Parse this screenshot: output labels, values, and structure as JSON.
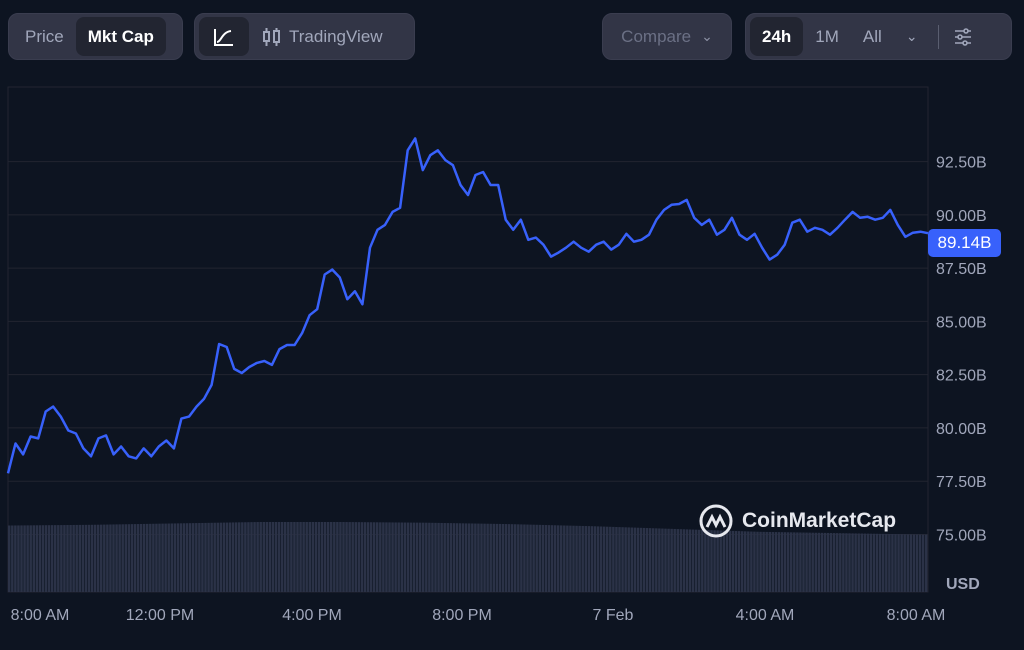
{
  "toolbar": {
    "price": "Price",
    "mktcap": "Mkt Cap",
    "line_icon": "line-chart-icon",
    "tradingview": "TradingView",
    "tradingview_icon": "candlestick-icon",
    "compare": "Compare",
    "ranges": [
      "24h",
      "1M",
      "All"
    ],
    "active_range": "24h",
    "active_metric": "Mkt Cap",
    "settings_icon": "sliders-icon"
  },
  "watermark": "CoinMarketCap",
  "colors": {
    "line": "#3861fb",
    "background": "#0d1421",
    "grid": "#222531",
    "volume": "#2b3247"
  },
  "chart_data": {
    "type": "line",
    "title": "",
    "currency": "USD",
    "current_value_label": "89.14B",
    "x_tick_labels": [
      "8:00 AM",
      "12:00 PM",
      "4:00 PM",
      "8:00 PM",
      "7 Feb",
      "4:00 AM",
      "8:00 AM"
    ],
    "y_tick_labels": [
      "92.50B",
      "90.00B",
      "87.50B",
      "85.00B",
      "82.50B",
      "80.00B",
      "77.50B",
      "75.00B"
    ],
    "y_ticks": [
      92.5,
      90,
      87.5,
      85,
      82.5,
      80,
      77.5,
      75
    ],
    "ylim": [
      72.3,
      96.0
    ],
    "grid": true,
    "series": [
      {
        "values": [
          77.87,
          79.27,
          78.76,
          79.6,
          79.51,
          80.77,
          81.0,
          80.53,
          79.88,
          79.74,
          79.04,
          78.67,
          79.51,
          79.65,
          78.76,
          79.13,
          78.67,
          78.57,
          79.04,
          78.67,
          79.13,
          79.41,
          79.04,
          80.44,
          80.53,
          81.0,
          81.37,
          82.02,
          83.94,
          83.8,
          82.77,
          82.58,
          82.86,
          83.05,
          83.14,
          82.96,
          83.7,
          83.89,
          83.89,
          84.45,
          85.29,
          85.57,
          87.2,
          87.43,
          87.06,
          86.04,
          86.41,
          85.8,
          88.46,
          89.3,
          89.53,
          90.14,
          90.33,
          93.03,
          93.59,
          92.1,
          92.8,
          93.03,
          92.57,
          92.33,
          91.4,
          90.93,
          91.87,
          92.01,
          91.4,
          91.4,
          89.77,
          89.3,
          89.77,
          88.83,
          88.93,
          88.6,
          88.04,
          88.23,
          88.46,
          88.74,
          88.46,
          88.27,
          88.6,
          88.74,
          88.37,
          88.6,
          89.11,
          88.74,
          88.83,
          89.07,
          89.77,
          90.23,
          90.47,
          90.51,
          90.7,
          89.86,
          89.53,
          89.77,
          89.07,
          89.3,
          89.86,
          89.07,
          88.83,
          89.11,
          88.46,
          87.9,
          88.13,
          88.6,
          89.63,
          89.77,
          89.21,
          89.39,
          89.3,
          89.07,
          89.39,
          89.77,
          90.14,
          89.86,
          89.91,
          89.77,
          89.86,
          90.23,
          89.53,
          88.97,
          89.16,
          89.21,
          89.14
        ]
      }
    ],
    "volume_relative": [
      0.95,
      0.96,
      0.98,
      1.0,
      1.0,
      0.99,
      0.97,
      0.94,
      0.9,
      0.86,
      0.84,
      0.82
    ]
  }
}
